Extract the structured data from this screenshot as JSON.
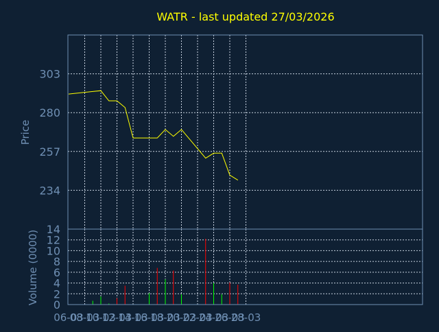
{
  "chart_data": [
    {
      "type": "line",
      "title": "WATR - last updated 27/03/2026",
      "ylabel": "Price",
      "ylim": [
        211,
        326
      ],
      "y_ticks": [
        "303",
        "280",
        "257",
        "234"
      ],
      "x_ticks": [
        "06-03",
        "08-03",
        "10-03",
        "12-03",
        "14-03",
        "16-03",
        "18-03",
        "20-03",
        "22-03",
        "24-03",
        "26-03",
        "28-03"
      ],
      "x_dates": [
        "2026-03-06",
        "2026-03-27"
      ],
      "grid": true,
      "series": [
        {
          "color": "#ffff00",
          "points": [
            [
              "2026-03-06",
              291.0
            ],
            [
              "2026-03-09",
              292.5
            ],
            [
              "2026-03-10",
              293.0
            ],
            [
              "2026-03-11",
              287.0
            ],
            [
              "2026-03-12",
              287.0
            ],
            [
              "2026-03-13",
              283.0
            ],
            [
              "2026-03-14",
              265.0
            ],
            [
              "2026-03-17",
              265.0
            ],
            [
              "2026-03-18",
              270.0
            ],
            [
              "2026-03-19",
              266.0
            ],
            [
              "2026-03-20",
              270.0
            ],
            [
              "2026-03-23",
              253.0
            ],
            [
              "2026-03-24",
              256.0
            ],
            [
              "2026-03-25",
              256.0
            ],
            [
              "2026-03-26",
              243.0
            ],
            [
              "2026-03-27",
              240.0
            ]
          ]
        }
      ]
    },
    {
      "type": "bar",
      "ylabel": "Volume (0000)",
      "ylim": [
        0,
        14
      ],
      "y_ticks": [
        "14",
        "12",
        "10",
        "8",
        "6",
        "4",
        "2",
        "0"
      ],
      "x_ticks": [
        "06-03",
        "08-03",
        "10-03",
        "12-03",
        "14-03",
        "16-03",
        "18-03",
        "20-03",
        "22-03",
        "24-03",
        "26-03",
        "28-03"
      ],
      "grid": true,
      "up_color": "#00ff00",
      "down_color": "#ff0000",
      "bars": [
        {
          "date": "2026-03-09",
          "value": 0.7,
          "direction": "up"
        },
        {
          "date": "2026-03-10",
          "value": 1.5,
          "direction": "up"
        },
        {
          "date": "2026-03-11",
          "value": 0.2,
          "direction": "up"
        },
        {
          "date": "2026-03-12",
          "value": 1.2,
          "direction": "down"
        },
        {
          "date": "2026-03-13",
          "value": 3.5,
          "direction": "down"
        },
        {
          "date": "2026-03-16",
          "value": 2.1,
          "direction": "up"
        },
        {
          "date": "2026-03-17",
          "value": 6.8,
          "direction": "down"
        },
        {
          "date": "2026-03-18",
          "value": 4.7,
          "direction": "up"
        },
        {
          "date": "2026-03-19",
          "value": 6.3,
          "direction": "down"
        },
        {
          "date": "2026-03-20",
          "value": 1.9,
          "direction": "up"
        },
        {
          "date": "2026-03-23",
          "value": 12.2,
          "direction": "down"
        },
        {
          "date": "2026-03-24",
          "value": 4.0,
          "direction": "up"
        },
        {
          "date": "2026-03-25",
          "value": 1.9,
          "direction": "up"
        },
        {
          "date": "2026-03-26",
          "value": 4.1,
          "direction": "down"
        },
        {
          "date": "2026-03-27",
          "value": 3.7,
          "direction": "down"
        }
      ]
    }
  ]
}
